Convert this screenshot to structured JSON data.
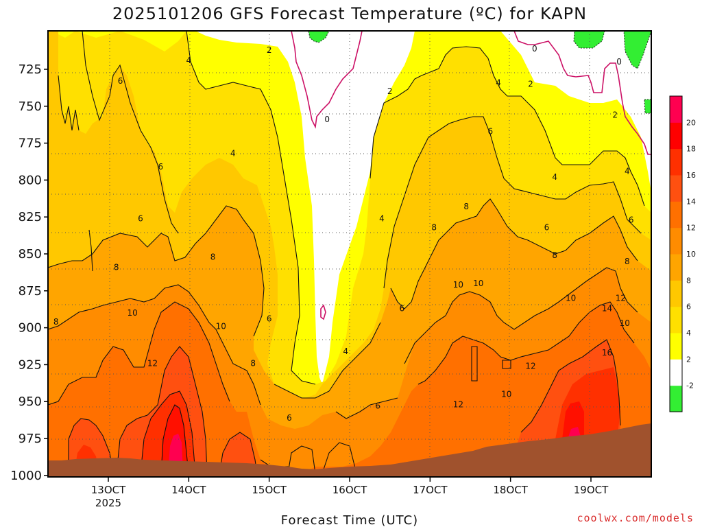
{
  "chart_data": {
    "type": "heatmap",
    "title": "2025101206 GFS Forecast Temperature (ºC) for KAPN",
    "xlabel": "Forecast Time (UTC)",
    "ylabel": "",
    "credit": "coolwx.com/models",
    "x_ticks": [
      {
        "value": 13,
        "label": "13OCT",
        "sublabel": "2025"
      },
      {
        "value": 14,
        "label": "14OCT"
      },
      {
        "value": 15,
        "label": "15OCT"
      },
      {
        "value": 16,
        "label": "16OCT"
      },
      {
        "value": 17,
        "label": "17OCT"
      },
      {
        "value": 18,
        "label": "18OCT"
      },
      {
        "value": 19,
        "label": "19OCT"
      }
    ],
    "xlim": [
      12.25,
      19.75
    ],
    "y_ticks": [
      "725",
      "750",
      "775",
      "800",
      "825",
      "850",
      "875",
      "900",
      "925",
      "950",
      "975",
      "1000"
    ],
    "ylim": [
      1001,
      699
    ],
    "y_scale": "linear, pressure decreasing upward (hPa)",
    "grid": true,
    "colorbar": {
      "position": "right",
      "levels": [
        "-2",
        "2",
        "4",
        "6",
        "8",
        "10",
        "12",
        "14",
        "16",
        "18",
        "20"
      ],
      "colors": [
        "#33ee33",
        "#ffffff",
        "#ffff00",
        "#ffe000",
        "#ffc800",
        "#ffa500",
        "#ff8c00",
        "#ff7000",
        "#ff5010",
        "#ff3000",
        "#ff0000",
        "#ff0050"
      ]
    },
    "contour_labels": [
      {
        "text": "2",
        "x": 15.0,
        "p": 712
      },
      {
        "text": "4",
        "x": 14.0,
        "p": 719
      },
      {
        "text": "6",
        "x": 13.15,
        "p": 733
      },
      {
        "text": "0",
        "x": 15.72,
        "p": 759
      },
      {
        "text": "2",
        "x": 16.5,
        "p": 740
      },
      {
        "text": "0",
        "x": 18.3,
        "p": 711
      },
      {
        "text": "0",
        "x": 19.35,
        "p": 720
      },
      {
        "text": "4",
        "x": 17.85,
        "p": 734
      },
      {
        "text": "2",
        "x": 18.25,
        "p": 735
      },
      {
        "text": "2",
        "x": 19.3,
        "p": 756
      },
      {
        "text": "6",
        "x": 17.75,
        "p": 767
      },
      {
        "text": "4",
        "x": 14.55,
        "p": 782
      },
      {
        "text": "6",
        "x": 13.65,
        "p": 791
      },
      {
        "text": "6",
        "x": 13.4,
        "p": 826
      },
      {
        "text": "4",
        "x": 16.4,
        "p": 826
      },
      {
        "text": "4",
        "x": 18.55,
        "p": 798
      },
      {
        "text": "4",
        "x": 19.45,
        "p": 794
      },
      {
        "text": "8",
        "x": 17.45,
        "p": 818
      },
      {
        "text": "8",
        "x": 17.05,
        "p": 832
      },
      {
        "text": "6",
        "x": 18.45,
        "p": 832
      },
      {
        "text": "6",
        "x": 19.5,
        "p": 827
      },
      {
        "text": "8",
        "x": 13.1,
        "p": 859
      },
      {
        "text": "8",
        "x": 14.3,
        "p": 852
      },
      {
        "text": "8",
        "x": 18.55,
        "p": 851
      },
      {
        "text": "8",
        "x": 19.45,
        "p": 855
      },
      {
        "text": "10",
        "x": 17.35,
        "p": 871
      },
      {
        "text": "10",
        "x": 17.6,
        "p": 870
      },
      {
        "text": "10",
        "x": 18.75,
        "p": 880
      },
      {
        "text": "12",
        "x": 19.37,
        "p": 880
      },
      {
        "text": "8",
        "x": 12.35,
        "p": 896
      },
      {
        "text": "10",
        "x": 13.3,
        "p": 890
      },
      {
        "text": "10",
        "x": 14.4,
        "p": 899
      },
      {
        "text": "6",
        "x": 15.0,
        "p": 894
      },
      {
        "text": "6",
        "x": 16.65,
        "p": 887
      },
      {
        "text": "14",
        "x": 19.2,
        "p": 887
      },
      {
        "text": "10",
        "x": 19.42,
        "p": 897
      },
      {
        "text": "12",
        "x": 13.55,
        "p": 924
      },
      {
        "text": "8",
        "x": 14.8,
        "p": 924
      },
      {
        "text": "4",
        "x": 15.95,
        "p": 916
      },
      {
        "text": "16",
        "x": 19.2,
        "p": 917
      },
      {
        "text": "12",
        "x": 18.25,
        "p": 926
      },
      {
        "text": "10",
        "x": 17.95,
        "p": 945
      },
      {
        "text": "12",
        "x": 17.35,
        "p": 952
      },
      {
        "text": "6",
        "x": 16.35,
        "p": 953
      },
      {
        "text": "6",
        "x": 15.25,
        "p": 961
      }
    ]
  }
}
